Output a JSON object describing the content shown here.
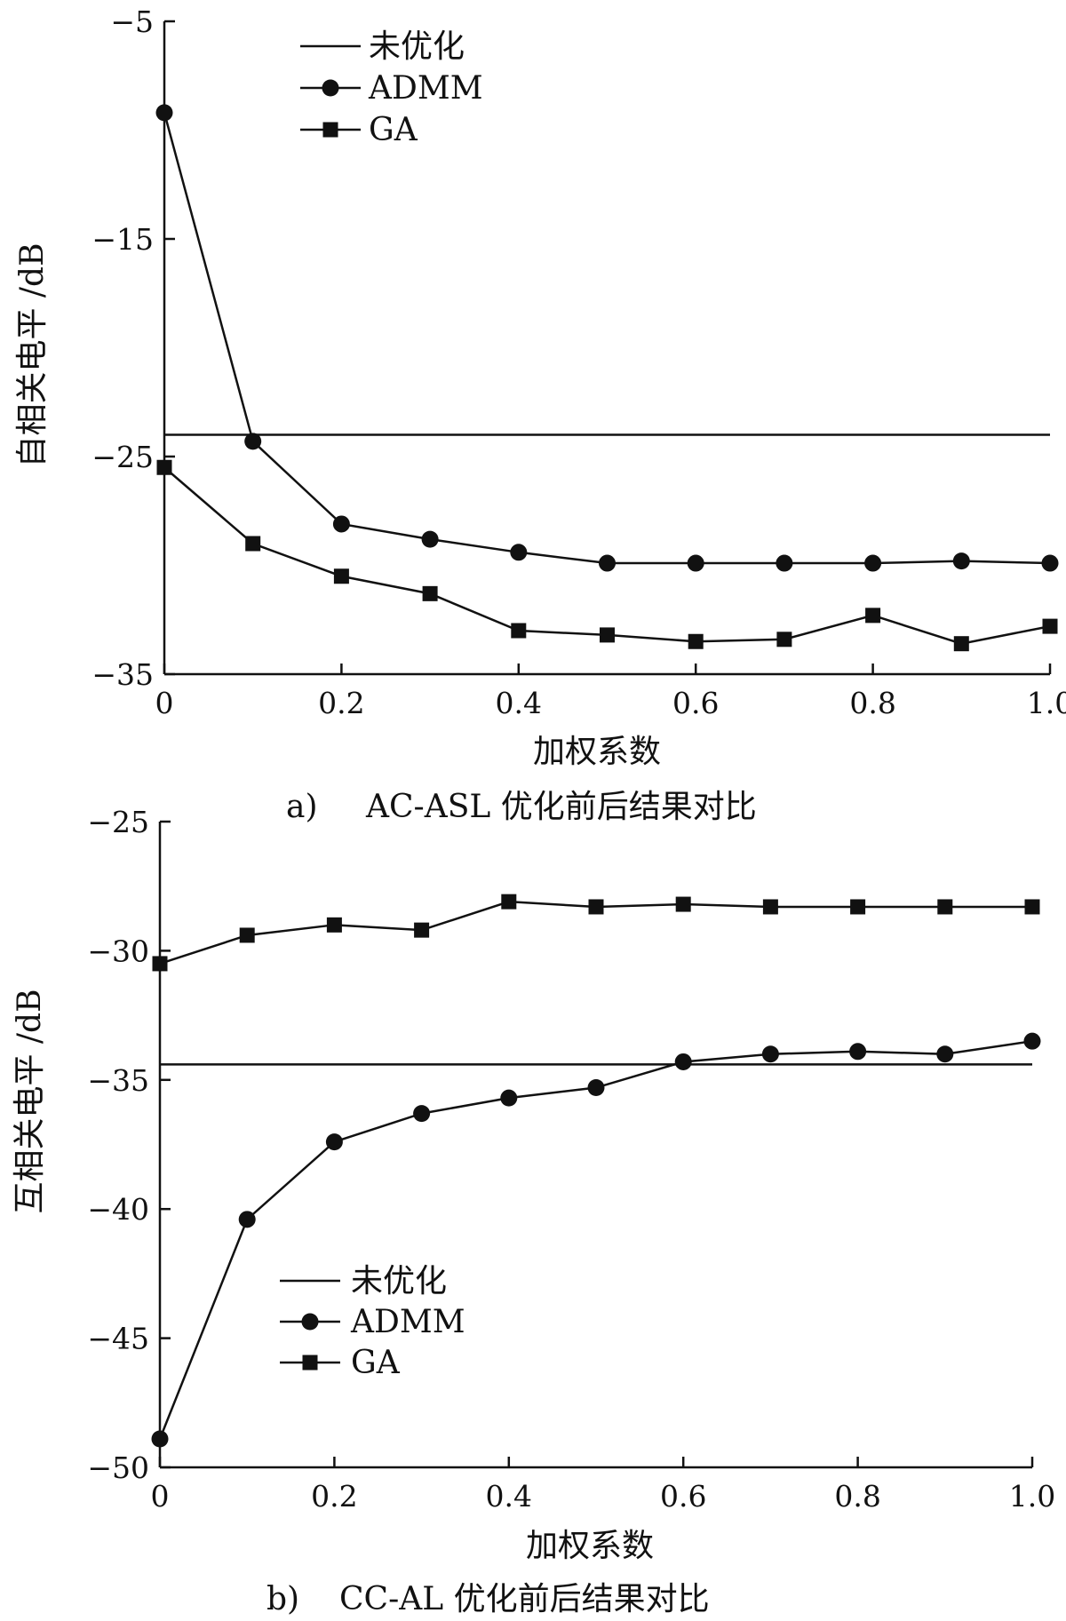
{
  "chart_data": [
    {
      "type": "line",
      "caption_letter": "a)",
      "caption": "AC-ASL 优化前后结果对比",
      "xlabel": "加权系数",
      "ylabel": "自相关电平 /dB",
      "xlim": [
        0,
        1.0
      ],
      "ylim": [
        -35,
        -5
      ],
      "xticks": [
        "0",
        "0.2",
        "0.4",
        "0.6",
        "0.8",
        "1.0"
      ],
      "yticks": [
        "−5",
        "−15",
        "−25",
        "−35"
      ],
      "legend_position": "top-left",
      "x": [
        0,
        0.1,
        0.2,
        0.3,
        0.4,
        0.5,
        0.6,
        0.7,
        0.8,
        0.9,
        1.0
      ],
      "series": [
        {
          "name": "未优化",
          "marker": "none",
          "values": [
            -24,
            -24,
            -24,
            -24,
            -24,
            -24,
            -24,
            -24,
            -24,
            -24,
            -24
          ]
        },
        {
          "name": "ADMM",
          "marker": "circle",
          "values": [
            -9.2,
            -24.3,
            -28.1,
            -28.8,
            -29.4,
            -29.9,
            -29.9,
            -29.9,
            -29.9,
            -29.8,
            -29.9
          ]
        },
        {
          "name": "GA",
          "marker": "square",
          "values": [
            -25.5,
            -29.0,
            -30.5,
            -31.3,
            -33.0,
            -33.2,
            -33.5,
            -33.4,
            -32.3,
            -33.6,
            -32.8
          ]
        }
      ]
    },
    {
      "type": "line",
      "caption_letter": "b)",
      "caption": "CC-AL 优化前后结果对比",
      "xlabel": "加权系数",
      "ylabel": "互相关电平 /dB",
      "xlim": [
        0,
        1.0
      ],
      "ylim": [
        -50,
        -25
      ],
      "xticks": [
        "0",
        "0.2",
        "0.4",
        "0.6",
        "0.8",
        "1.0"
      ],
      "yticks": [
        "−25",
        "−30",
        "−35",
        "−40",
        "−45",
        "−50"
      ],
      "legend_position": "bottom-left",
      "x": [
        0,
        0.1,
        0.2,
        0.3,
        0.4,
        0.5,
        0.6,
        0.7,
        0.8,
        0.9,
        1.0
      ],
      "series": [
        {
          "name": "未优化",
          "marker": "none",
          "values": [
            -34.4,
            -34.4,
            -34.4,
            -34.4,
            -34.4,
            -34.4,
            -34.4,
            -34.4,
            -34.4,
            -34.4,
            -34.4
          ]
        },
        {
          "name": "ADMM",
          "marker": "circle",
          "values": [
            -48.9,
            -40.4,
            -37.4,
            -36.3,
            -35.7,
            -35.3,
            -34.3,
            -34.0,
            -33.9,
            -34.0,
            -33.5
          ]
        },
        {
          "name": "GA",
          "marker": "square",
          "values": [
            -30.5,
            -29.4,
            -29.0,
            -29.2,
            -28.1,
            -28.3,
            -28.2,
            -28.3,
            -28.3,
            -28.3,
            -28.3
          ]
        }
      ]
    }
  ]
}
